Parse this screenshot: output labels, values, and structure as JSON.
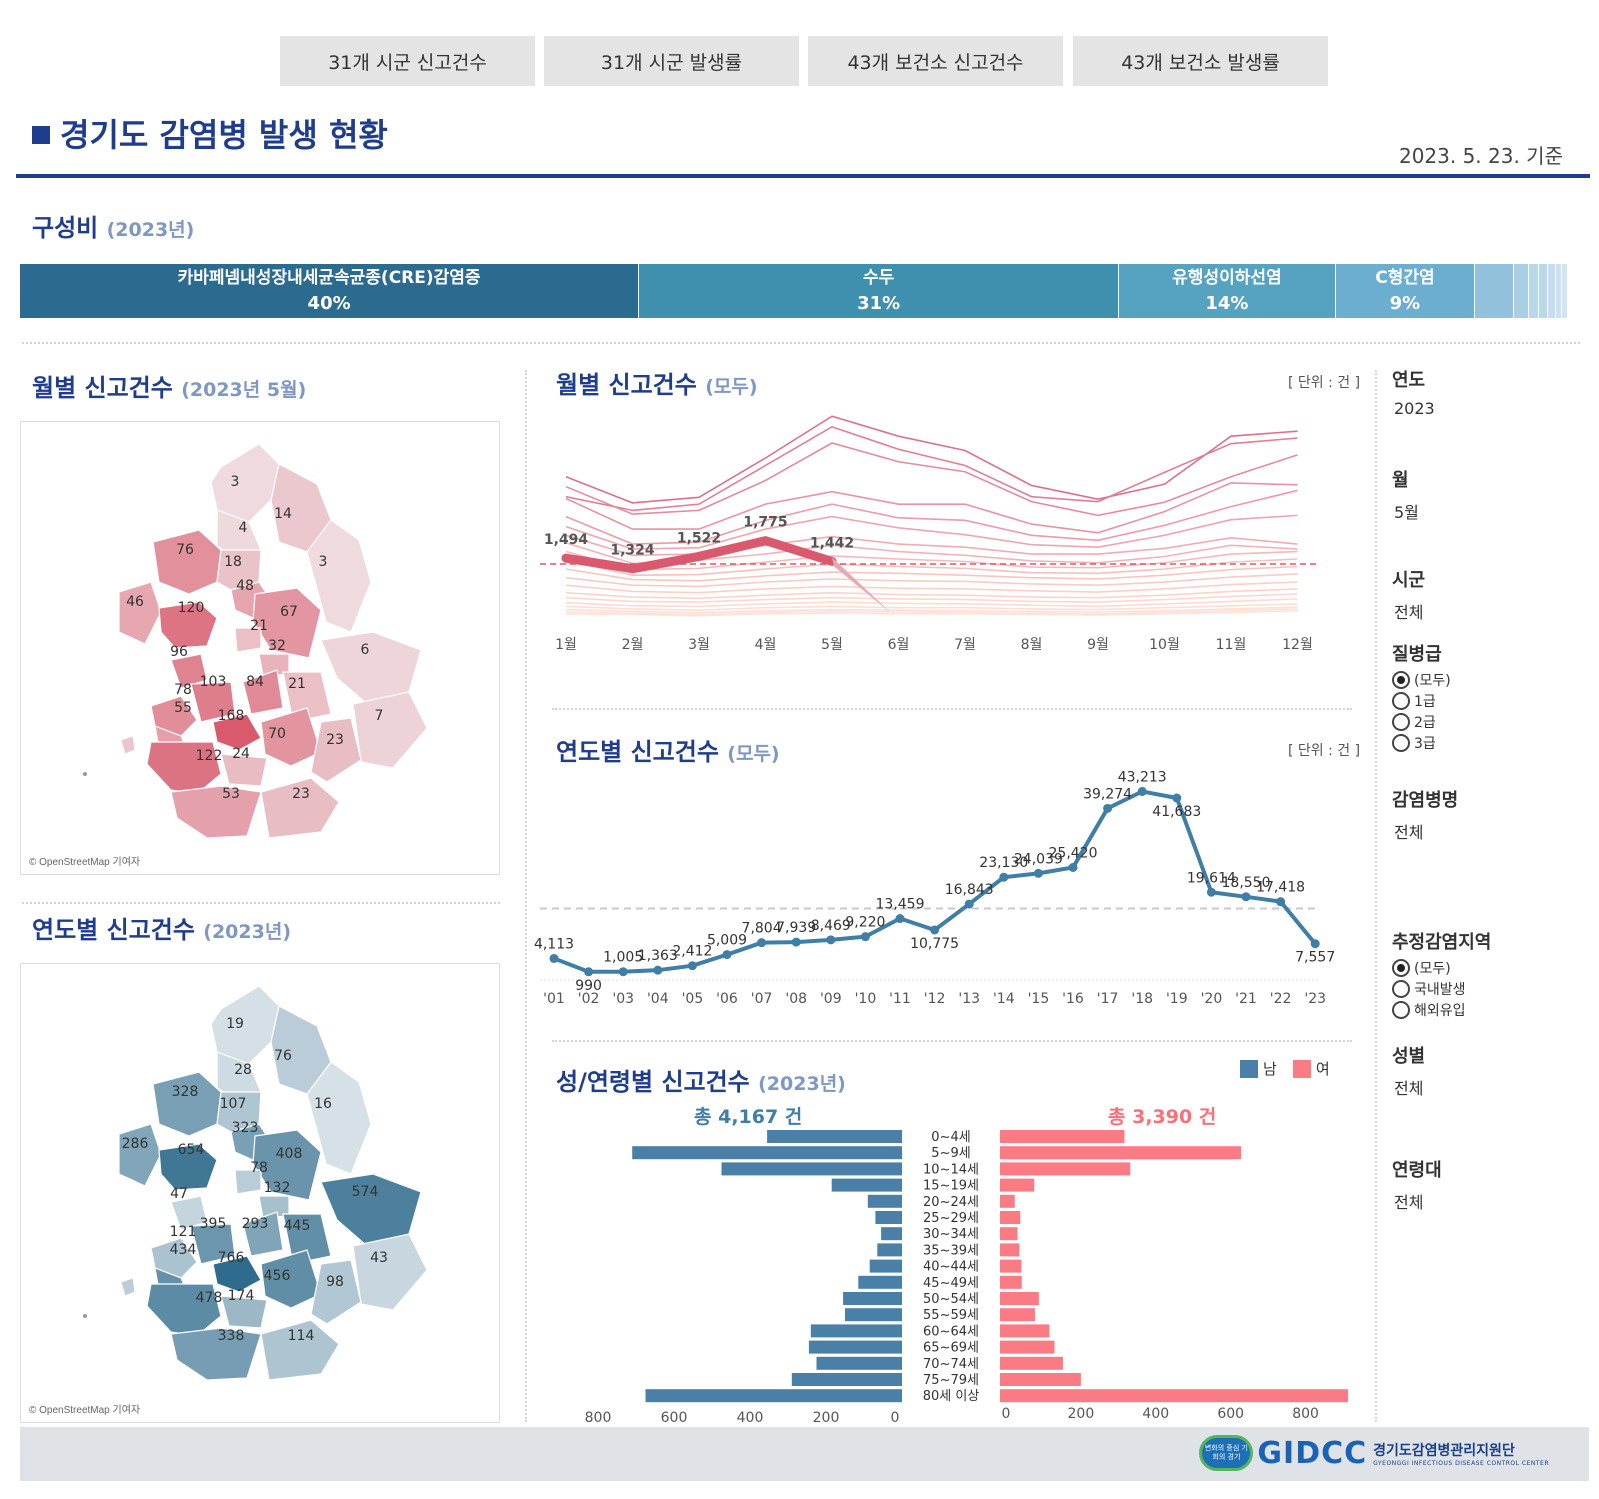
{
  "tabs": [
    "31개 시군 신고건수",
    "31개 시군 발생률",
    "43개 보건소 신고건수",
    "43개 보건소 발생률"
  ],
  "header": {
    "title": "경기도 감염병 발생 현황",
    "date_basis": "2023. 5. 23. 기준"
  },
  "composition": {
    "title": "구성비",
    "subtitle": "(2023년)",
    "segments": [
      {
        "label": "카바페넴내성장내세균속균종(CRE)감염증",
        "pct": "40%",
        "share": 40,
        "color": "#2b6b8f"
      },
      {
        "label": "수두",
        "pct": "31%",
        "share": 31,
        "color": "#3f8fae"
      },
      {
        "label": "유행성이하선염",
        "pct": "14%",
        "share": 14,
        "color": "#56a3c1"
      },
      {
        "label": "C형간염",
        "pct": "9%",
        "share": 9,
        "color": "#6caed0"
      },
      {
        "label": "",
        "pct": "",
        "share": 2.5,
        "color": "#92c1dc"
      },
      {
        "label": "",
        "pct": "",
        "share": 1,
        "color": "#a9cfe5"
      },
      {
        "label": "",
        "pct": "",
        "share": 0.6,
        "color": "#b9d8ea"
      },
      {
        "label": "",
        "pct": "",
        "share": 0.6,
        "color": "#b9d8ea"
      },
      {
        "label": "",
        "pct": "",
        "share": 0.5,
        "color": "#c3def0"
      },
      {
        "label": "",
        "pct": "",
        "share": 0.4,
        "color": "#c9e1f1"
      },
      {
        "label": "",
        "pct": "",
        "share": 0.4,
        "color": "#cfe5f2"
      }
    ]
  },
  "map_monthly": {
    "title": "월별 신고건수",
    "subtitle": "(2023년 5월)",
    "credit": "© OpenStreetMap 기여자",
    "labels": [
      "3",
      "14",
      "4",
      "76",
      "18",
      "3",
      "48",
      "46",
      "120",
      "67",
      "21",
      "32",
      "6",
      "96",
      "84",
      "103",
      "21",
      "78",
      "55",
      "168",
      "7",
      "70",
      "23",
      "122",
      "24",
      "53",
      "23"
    ]
  },
  "map_yearly": {
    "title": "연도별 신고건수",
    "subtitle": "(2023년)",
    "credit": "© OpenStreetMap 기여자",
    "labels": [
      "19",
      "76",
      "28",
      "328",
      "107",
      "16",
      "323",
      "286",
      "654",
      "408",
      "78",
      "132",
      "574",
      "47",
      "293",
      "395",
      "445",
      "121",
      "434",
      "766",
      "43",
      "456",
      "98",
      "478",
      "174",
      "338",
      "114"
    ]
  },
  "monthly_chart": {
    "title": "월별 신고건수",
    "subtitle": "(모두)",
    "unit": "[ 단위 : 건 ]",
    "chart_data": {
      "type": "line",
      "categories": [
        "1월",
        "2월",
        "3월",
        "4월",
        "5월",
        "6월",
        "7월",
        "8월",
        "9월",
        "10월",
        "11월",
        "12월"
      ],
      "highlight": {
        "name": "2023",
        "values": [
          1494,
          1324,
          1522,
          1775,
          1442
        ],
        "labels": [
          "1,494",
          "1,324",
          "1,522",
          "1,775",
          "1,442"
        ]
      },
      "background_series": [
        [
          2800,
          2380,
          2470,
          3100,
          3770,
          3450,
          3220,
          2660,
          2440,
          2680,
          3450,
          3530
        ],
        [
          2480,
          2260,
          2360,
          2980,
          3600,
          3240,
          2980,
          2480,
          2400,
          2870,
          3330,
          3420
        ],
        [
          2640,
          2200,
          2260,
          2740,
          3340,
          3040,
          2880,
          2400,
          2180,
          2390,
          2800,
          3150
        ],
        [
          2450,
          1960,
          1960,
          2360,
          2560,
          2360,
          2360,
          2040,
          1900,
          2240,
          2700,
          2670
        ],
        [
          2160,
          1720,
          1750,
          2100,
          2360,
          2140,
          2100,
          1860,
          1780,
          2020,
          2320,
          2580
        ],
        [
          2000,
          1640,
          1660,
          1960,
          2160,
          1980,
          1870,
          1710,
          1670,
          1860,
          2110,
          2180
        ],
        [
          1860,
          1540,
          1560,
          1700,
          1840,
          1720,
          1670,
          1560,
          1560,
          1650,
          1820,
          1720
        ],
        [
          1740,
          1410,
          1460,
          1560,
          1700,
          1600,
          1540,
          1450,
          1420,
          1520,
          1700,
          1640
        ],
        [
          1600,
          1310,
          1330,
          1430,
          1530,
          1480,
          1440,
          1350,
          1340,
          1420,
          1560,
          1600
        ],
        [
          1460,
          1220,
          1230,
          1320,
          1400,
          1360,
          1330,
          1260,
          1250,
          1320,
          1430,
          1480
        ],
        [
          1320,
          1150,
          1130,
          1210,
          1270,
          1250,
          1220,
          1180,
          1160,
          1220,
          1310,
          1360
        ],
        [
          1180,
          1060,
          1040,
          1110,
          1160,
          1130,
          1120,
          1080,
          1060,
          1110,
          1190,
          1240
        ],
        [
          1060,
          960,
          940,
          1000,
          1040,
          1010,
          1000,
          970,
          950,
          1000,
          1070,
          1110
        ],
        [
          940,
          870,
          850,
          900,
          940,
          910,
          900,
          870,
          860,
          900,
          960,
          1000
        ],
        [
          860,
          800,
          790,
          830,
          860,
          840,
          830,
          800,
          790,
          830,
          880,
          920
        ],
        [
          780,
          730,
          720,
          760,
          790,
          770,
          760,
          740,
          720,
          760,
          800,
          840
        ],
        [
          720,
          680,
          660,
          700,
          720,
          700,
          700,
          680,
          670,
          700,
          730,
          760
        ],
        [
          670,
          640,
          620,
          650,
          670,
          660,
          650,
          640,
          630,
          650,
          680,
          710
        ],
        [
          630,
          610,
          590,
          620,
          640,
          630,
          620,
          610,
          600,
          620,
          650,
          680
        ],
        [
          600,
          590,
          570,
          600,
          610,
          600,
          600,
          590,
          580,
          600,
          620,
          650
        ]
      ],
      "reference_line": 1400,
      "ylim": [
        550,
        3950
      ]
    }
  },
  "yearly_chart": {
    "title": "연도별 신고건수",
    "subtitle": "(모두)",
    "unit": "[ 단위 : 건 ]",
    "chart_data": {
      "type": "line",
      "categories": [
        "'01",
        "'02",
        "'03",
        "'04",
        "'05",
        "'06",
        "'07",
        "'08",
        "'09",
        "'10",
        "'11",
        "'12",
        "'13",
        "'14",
        "'15",
        "'16",
        "'17",
        "'18",
        "'19",
        "'20",
        "'21",
        "'22",
        "'23"
      ],
      "values": [
        4113,
        990,
        1005,
        1363,
        2412,
        5009,
        7804,
        7939,
        8469,
        9220,
        13459,
        10775,
        16843,
        23130,
        24039,
        25420,
        39274,
        43213,
        41683,
        19614,
        18550,
        17418,
        7557
      ],
      "labels": [
        "4,113",
        "990",
        "1,005",
        "1,363",
        "2,412",
        "5,009",
        "7,804",
        "7,939",
        "8,469",
        "9,220",
        "13,459",
        "10,775",
        "16,843",
        "23,130",
        "24,039",
        "25,420",
        "39,274",
        "43,213",
        "41,683",
        "19,614",
        "18,550",
        "17,418",
        "7,557"
      ],
      "reference_line": 15800,
      "ylim": [
        0,
        44500
      ],
      "color": "#3f7ea6"
    }
  },
  "age_chart": {
    "title": "성/연령별 신고건수",
    "subtitle": "(2023년)",
    "legend": {
      "male": "남",
      "female": "여"
    },
    "male_total": "총 4,167 건",
    "female_total": "총 3,390 건",
    "colors": {
      "male": "#4a80a7",
      "female": "#fb7b85"
    },
    "chart_data": {
      "type": "bar",
      "categories": [
        "0~4세",
        "5~9세",
        "10~14세",
        "15~19세",
        "20~24세",
        "25~29세",
        "30~34세",
        "35~39세",
        "40~44세",
        "45~49세",
        "50~54세",
        "55~59세",
        "60~64세",
        "65~69세",
        "70~74세",
        "75~79세",
        "80세 이상"
      ],
      "series": [
        {
          "name": "남",
          "values": [
            355,
            710,
            475,
            185,
            90,
            70,
            55,
            65,
            85,
            115,
            155,
            150,
            240,
            245,
            225,
            290,
            675
          ]
        },
        {
          "name": "여",
          "values": [
            320,
            620,
            335,
            88,
            38,
            52,
            45,
            50,
            55,
            56,
            100,
            90,
            127,
            140,
            162,
            208,
            895
          ]
        }
      ],
      "male_ticks": [
        "800",
        "600",
        "400",
        "200",
        "0"
      ],
      "female_ticks": [
        "0",
        "200",
        "400",
        "600",
        "800"
      ],
      "xlim": [
        0,
        900
      ]
    }
  },
  "filters": [
    {
      "head": "연도",
      "value": "2023"
    },
    {
      "head": "월",
      "value": "5월"
    },
    {
      "head": "시군",
      "value": "전체"
    },
    {
      "head": "질병급",
      "options": [
        "(모두)",
        "1급",
        "2급",
        "3급"
      ],
      "selected": 0
    },
    {
      "head": "감염병명",
      "value": "전체"
    },
    {
      "head": "추정감염지역",
      "options": [
        "(모두)",
        "국내발생",
        "해외유입"
      ],
      "selected": 0
    },
    {
      "head": "성별",
      "value": "전체"
    },
    {
      "head": "연령대",
      "value": "전체"
    }
  ],
  "footer": {
    "logo_badge": "변화의 중심 기회의 경기",
    "logo_text": "GIDCC",
    "logo_kor": "경기도감염병관리지원단",
    "logo_eng": "GYEONGGI INFECTIOUS DISEASE CONTROL CENTER"
  }
}
